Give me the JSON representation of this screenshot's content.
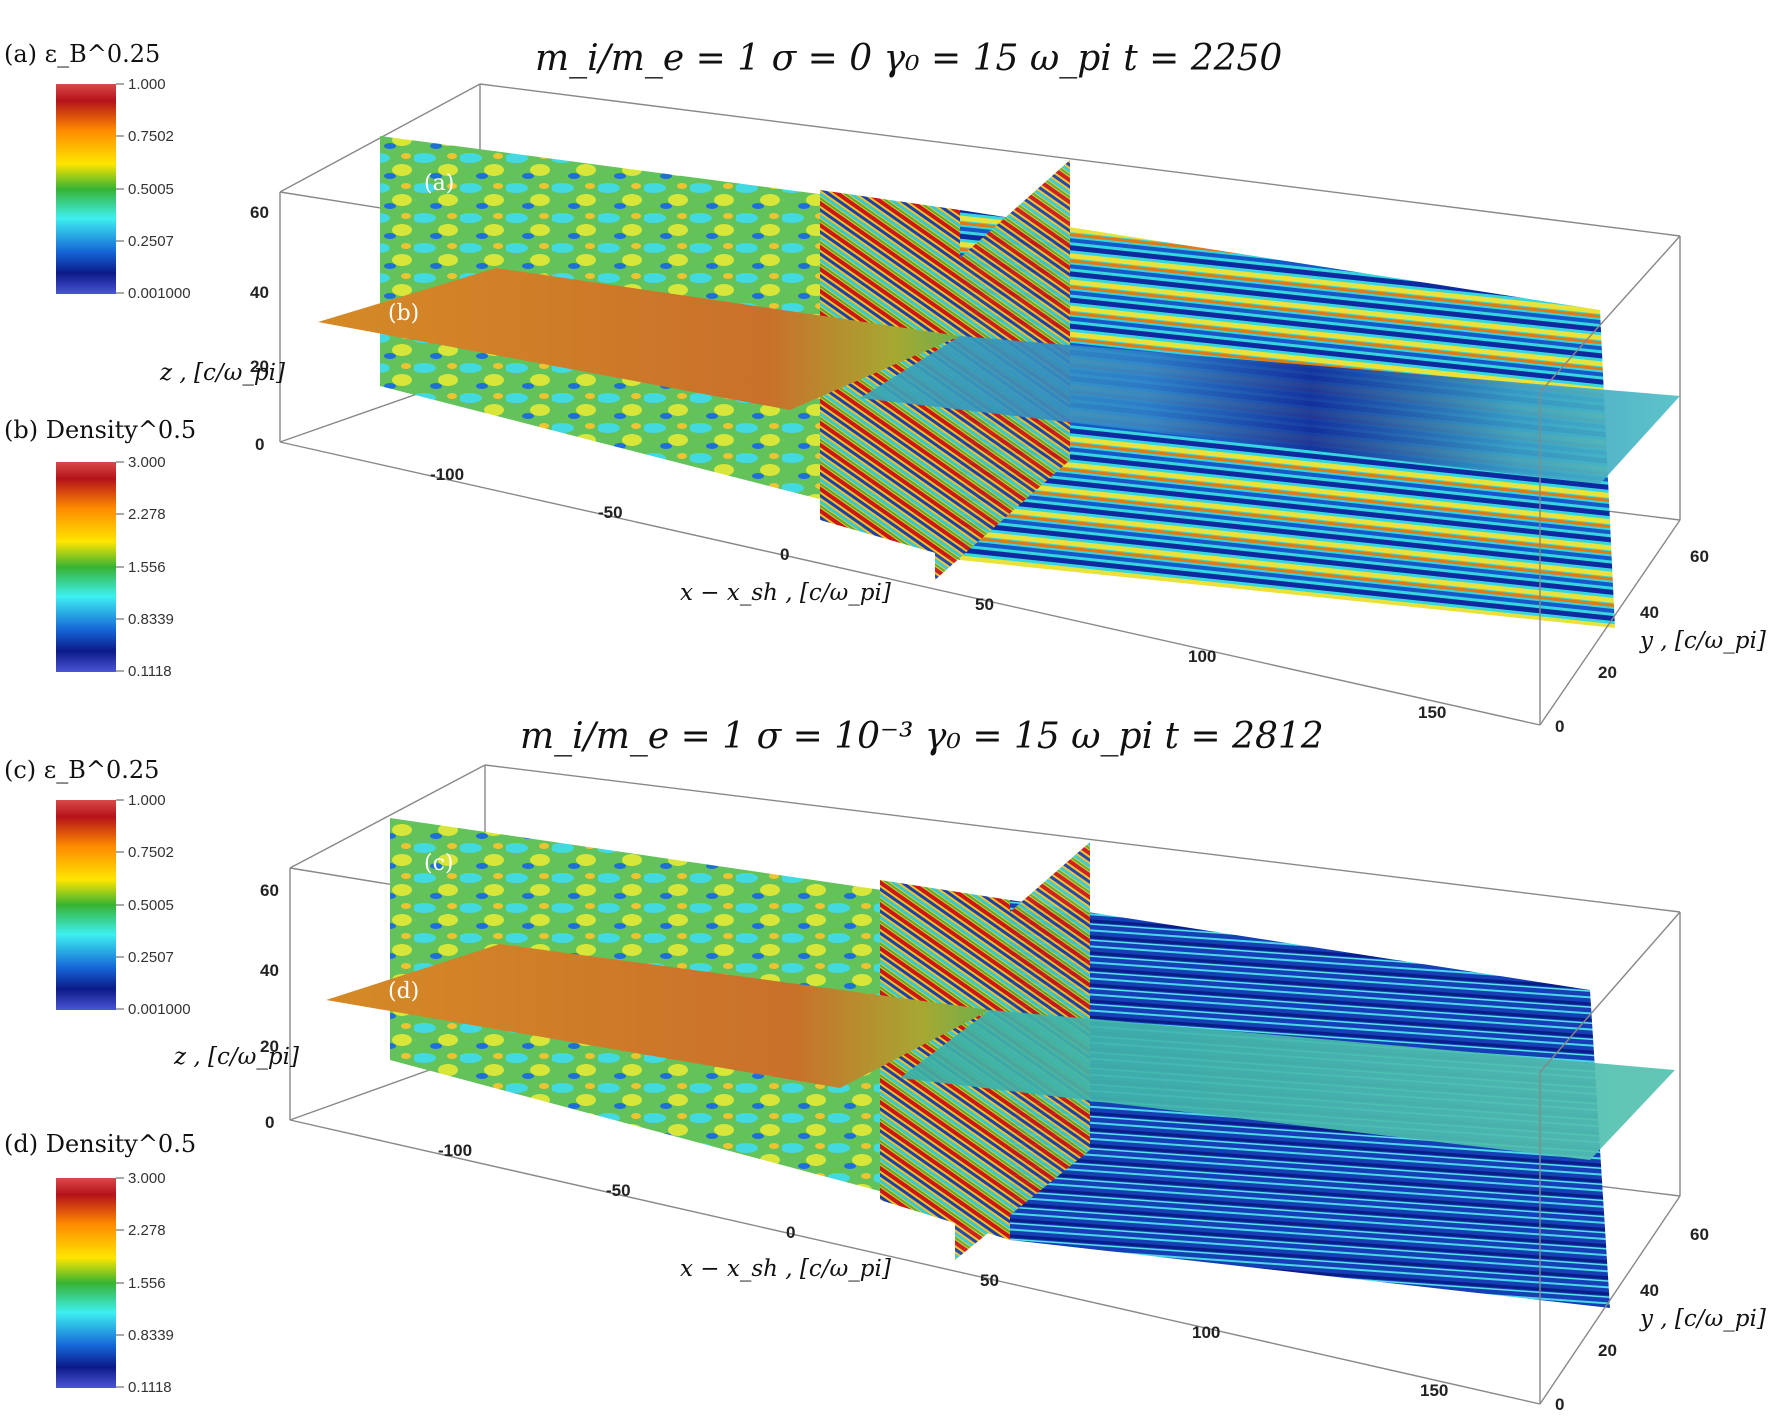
{
  "figures": [
    {
      "title": "m_i/m_e = 1    σ = 0    γ₀ = 15    ω_pi t = 2250",
      "panel_tags": [
        "(a)",
        "(b)"
      ],
      "x_label": "x − x_sh ,  [c/ω_pi]",
      "y_label": "y ,  [c/ω_pi]",
      "z_label": "z ,  [c/ω_pi]",
      "x_ticks": [
        "-100",
        "-50",
        "0",
        "50",
        "100",
        "150"
      ],
      "y_ticks": [
        "0",
        "20",
        "40",
        "60"
      ],
      "z_ticks": [
        "0",
        "20",
        "40",
        "60"
      ],
      "colorbars": [
        {
          "label": "(a)  ε_B^0.25",
          "ticks": [
            "1.000",
            "0.7502",
            "0.5005",
            "0.2507",
            "0.001000"
          ]
        },
        {
          "label": "(b) Density^0.5",
          "ticks": [
            "3.000",
            "2.278",
            "1.556",
            "0.8339",
            "0.1118"
          ]
        }
      ]
    },
    {
      "title": "m_i/m_e = 1   σ = 10⁻³   γ₀ = 15   ω_pi t = 2812",
      "panel_tags": [
        "(c)",
        "(d)"
      ],
      "x_label": "x − x_sh ,  [c/ω_pi]",
      "y_label": "y ,  [c/ω_pi]",
      "z_label": "z ,  [c/ω_pi]",
      "x_ticks": [
        "-100",
        "-50",
        "0",
        "50",
        "100",
        "150"
      ],
      "y_ticks": [
        "0",
        "20",
        "40",
        "60"
      ],
      "z_ticks": [
        "0",
        "20",
        "40",
        "60"
      ],
      "colorbars": [
        {
          "label": "(c)  ε_B^0.25",
          "ticks": [
            "1.000",
            "0.7502",
            "0.5005",
            "0.2507",
            "0.001000"
          ]
        },
        {
          "label": "(d)  Density^0.5",
          "ticks": [
            "3.000",
            "2.278",
            "1.556",
            "0.8339",
            "0.1118"
          ]
        }
      ]
    }
  ],
  "colormap": [
    "#3b3fc4",
    "#0b1d8a",
    "#1466d6",
    "#37e4e8",
    "#2ca02c",
    "#f0e600",
    "#ff9a00",
    "#c81010",
    "#e05050"
  ]
}
